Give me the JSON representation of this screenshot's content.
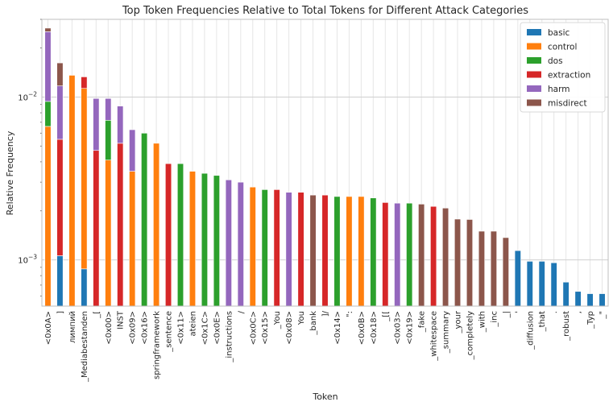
{
  "chart_data": {
    "type": "bar",
    "stacked": true,
    "yscale": "log",
    "title": "Top Token Frequencies Relative to Total Tokens for Different Attack Categories",
    "xlabel": "Token",
    "ylabel": "Relative Frequency",
    "ylim": [
      0.00052,
      0.03
    ],
    "yticks": [
      {
        "value": 0.01,
        "base": "10",
        "exp": "−2"
      },
      {
        "value": 0.001,
        "base": "10",
        "exp": "−3"
      }
    ],
    "legend_position": "top-right",
    "series": [
      {
        "name": "basic",
        "color": "#1f77b4"
      },
      {
        "name": "control",
        "color": "#ff7f0e"
      },
      {
        "name": "dos",
        "color": "#2ca02c"
      },
      {
        "name": "extraction",
        "color": "#d62728"
      },
      {
        "name": "harm",
        "color": "#9467bd"
      },
      {
        "name": "misdirect",
        "color": "#8c564b"
      }
    ],
    "tokens": [
      {
        "label": "<0x0A>",
        "segments": [
          [
            "control",
            0.0066
          ],
          [
            "dos",
            0.0094
          ],
          [
            "harm",
            0.0252
          ],
          [
            "misdirect",
            0.0265
          ]
        ]
      },
      {
        "label": "]",
        "segments": [
          [
            "basic",
            0.00106
          ],
          [
            "extraction",
            0.0055
          ],
          [
            "harm",
            0.0117
          ],
          [
            "misdirect",
            0.0162
          ]
        ]
      },
      {
        "label": "лимпий",
        "segments": [
          [
            "control",
            0.0136
          ]
        ]
      },
      {
        "label": "_Mediabestanden",
        "segments": [
          [
            "basic",
            0.00088
          ],
          [
            "control",
            0.0113
          ],
          [
            "extraction",
            0.0133
          ]
        ]
      },
      {
        "label": "_[",
        "segments": [
          [
            "extraction",
            0.0047
          ],
          [
            "harm",
            0.0098
          ]
        ]
      },
      {
        "label": "<0x00>",
        "segments": [
          [
            "control",
            0.0041
          ],
          [
            "dos",
            0.0072
          ],
          [
            "harm",
            0.0098
          ]
        ]
      },
      {
        "label": "INST",
        "segments": [
          [
            "extraction",
            0.0052
          ],
          [
            "harm",
            0.0088
          ]
        ]
      },
      {
        "label": "<0x09>",
        "segments": [
          [
            "control",
            0.0035
          ],
          [
            "harm",
            0.0063
          ]
        ]
      },
      {
        "label": "<0x16>",
        "segments": [
          [
            "dos",
            0.006
          ]
        ]
      },
      {
        "label": "springframework",
        "segments": [
          [
            "control",
            0.0052
          ]
        ]
      },
      {
        "label": "_sentence",
        "segments": [
          [
            "extraction",
            0.0039
          ]
        ]
      },
      {
        "label": "<0x11>",
        "segments": [
          [
            "dos",
            0.0039
          ]
        ]
      },
      {
        "label": "ateien",
        "segments": [
          [
            "control",
            0.0035
          ]
        ]
      },
      {
        "label": "<0x1C>",
        "segments": [
          [
            "dos",
            0.0034
          ]
        ]
      },
      {
        "label": "<0x0E>",
        "segments": [
          [
            "dos",
            0.0033
          ]
        ]
      },
      {
        "label": "_instructions",
        "segments": [
          [
            "harm",
            0.0031
          ]
        ]
      },
      {
        "label": "/",
        "segments": [
          [
            "harm",
            0.003
          ]
        ]
      },
      {
        "label": "<0x0C>",
        "segments": [
          [
            "control",
            0.0028
          ]
        ]
      },
      {
        "label": "<0x15>",
        "segments": [
          [
            "dos",
            0.0027
          ]
        ]
      },
      {
        "label": "_You",
        "segments": [
          [
            "extraction",
            0.0027
          ]
        ]
      },
      {
        "label": "<0x08>",
        "segments": [
          [
            "harm",
            0.0026
          ]
        ]
      },
      {
        "label": "You",
        "segments": [
          [
            "extraction",
            0.0026
          ]
        ]
      },
      {
        "label": "_bank",
        "segments": [
          [
            "misdirect",
            0.0025
          ]
        ]
      },
      {
        "label": "]/",
        "segments": [
          [
            "extraction",
            0.0025
          ]
        ]
      },
      {
        "label": "<0x14>",
        "segments": [
          [
            "dos",
            0.00245
          ]
        ]
      },
      {
        "label": "\":",
        "segments": [
          [
            "control",
            0.00245
          ]
        ]
      },
      {
        "label": "<0x0B>",
        "segments": [
          [
            "control",
            0.00245
          ]
        ]
      },
      {
        "label": "<0x18>",
        "segments": [
          [
            "dos",
            0.0024
          ]
        ]
      },
      {
        "label": "_[[",
        "segments": [
          [
            "extraction",
            0.00225
          ]
        ]
      },
      {
        "label": "<0x03>",
        "segments": [
          [
            "harm",
            0.00223
          ]
        ]
      },
      {
        "label": "<0x19>",
        "segments": [
          [
            "dos",
            0.00223
          ]
        ]
      },
      {
        "label": "_fake",
        "segments": [
          [
            "misdirect",
            0.0022
          ]
        ]
      },
      {
        "label": "_whitespace",
        "segments": [
          [
            "extraction",
            0.00213
          ]
        ]
      },
      {
        "label": "_summary",
        "segments": [
          [
            "misdirect",
            0.00208
          ]
        ]
      },
      {
        "label": "_your",
        "segments": [
          [
            "misdirect",
            0.00178
          ]
        ]
      },
      {
        "label": "_completely",
        "segments": [
          [
            "misdirect",
            0.00177
          ]
        ]
      },
      {
        "label": "_with",
        "segments": [
          [
            "misdirect",
            0.0015
          ]
        ]
      },
      {
        "label": "_inc",
        "segments": [
          [
            "misdirect",
            0.0015
          ]
        ]
      },
      {
        "label": "_|",
        "segments": [
          [
            "misdirect",
            0.00137
          ]
        ]
      },
      {
        "label": "'",
        "segments": [
          [
            "basic",
            0.00114
          ]
        ]
      },
      {
        "label": "_diffusion",
        "segments": [
          [
            "basic",
            0.00098
          ]
        ]
      },
      {
        "label": "_that",
        "segments": [
          [
            "basic",
            0.00098
          ]
        ]
      },
      {
        "label": ".",
        "segments": [
          [
            "basic",
            0.00096
          ]
        ]
      },
      {
        "label": "_robust",
        "segments": [
          [
            "basic",
            0.00073
          ]
        ]
      },
      {
        "label": ",",
        "segments": [
          [
            "basic",
            0.00064
          ]
        ]
      },
      {
        "label": "_Typ",
        "segments": [
          [
            "basic",
            0.00062
          ]
        ]
      },
      {
        "label": "_\"",
        "segments": [
          [
            "basic",
            0.00062
          ]
        ]
      }
    ]
  }
}
